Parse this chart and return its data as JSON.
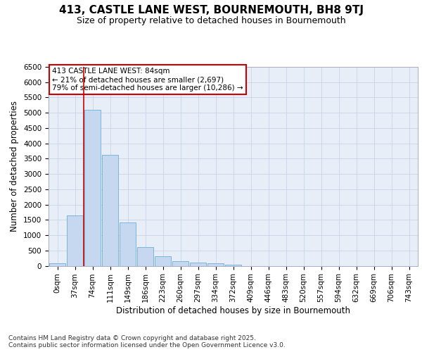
{
  "title": "413, CASTLE LANE WEST, BOURNEMOUTH, BH8 9TJ",
  "subtitle": "Size of property relative to detached houses in Bournemouth",
  "xlabel": "Distribution of detached houses by size in Bournemouth",
  "ylabel": "Number of detached properties",
  "footer_line1": "Contains HM Land Registry data © Crown copyright and database right 2025.",
  "footer_line2": "Contains public sector information licensed under the Open Government Licence v3.0.",
  "annotation_title": "413 CASTLE LANE WEST: 84sqm",
  "annotation_line2": "← 21% of detached houses are smaller (2,697)",
  "annotation_line3": "79% of semi-detached houses are larger (10,286) →",
  "bar_categories": [
    "0sqm",
    "37sqm",
    "74sqm",
    "111sqm",
    "149sqm",
    "186sqm",
    "223sqm",
    "260sqm",
    "297sqm",
    "334sqm",
    "372sqm",
    "409sqm",
    "446sqm",
    "483sqm",
    "520sqm",
    "557sqm",
    "594sqm",
    "632sqm",
    "669sqm",
    "706sqm",
    "743sqm"
  ],
  "bar_values": [
    70,
    1650,
    5100,
    3630,
    1420,
    610,
    310,
    155,
    110,
    75,
    40,
    0,
    0,
    0,
    0,
    0,
    0,
    0,
    0,
    0,
    0
  ],
  "bar_color": "#c5d8f0",
  "bar_edge_color": "#6baed6",
  "vline_color": "#cc0000",
  "vline_x_idx": 2,
  "annotation_box_color": "#cc0000",
  "background_color": "#e8eef8",
  "grid_color": "#c8d4e8",
  "ylim_max": 6500,
  "yticks": [
    0,
    500,
    1000,
    1500,
    2000,
    2500,
    3000,
    3500,
    4000,
    4500,
    5000,
    5500,
    6000,
    6500
  ],
  "title_fontsize": 11,
  "subtitle_fontsize": 9,
  "axis_label_fontsize": 8.5,
  "tick_fontsize": 7.5,
  "annotation_fontsize": 7.5,
  "footer_fontsize": 6.5
}
